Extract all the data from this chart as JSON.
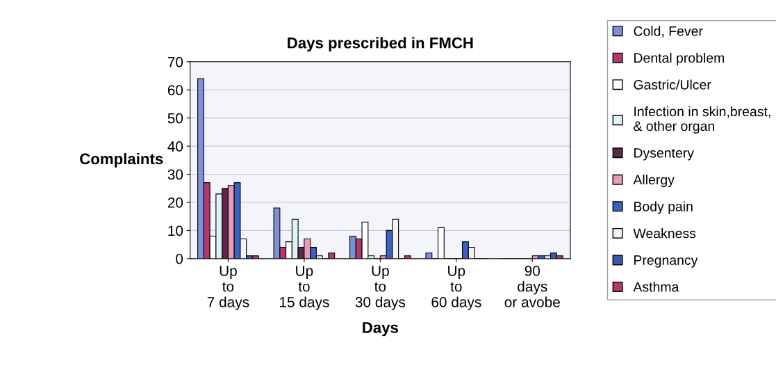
{
  "chart_data": {
    "type": "bar",
    "title": "Days prescribed in FMCH",
    "xlabel": "Days",
    "ylabel": "Complaints",
    "categories": [
      "Up to 7 days",
      "Up to 15 days",
      "Up to 30 days",
      "Up to 60 days",
      "90 days or avobe"
    ],
    "series": [
      {
        "name": "Cold, Fever",
        "color": "#8090d8",
        "values": [
          64,
          18,
          8,
          2,
          0
        ]
      },
      {
        "name": "Dental problem",
        "color": "#b03a6e",
        "values": [
          27,
          4,
          7,
          0,
          0
        ]
      },
      {
        "name": "Gastric/Ulcer",
        "color": "#ffffff",
        "values": [
          8,
          6,
          13,
          11,
          0
        ]
      },
      {
        "name": "Infection in skin,breast, & other organ",
        "color": "#ddf3f5",
        "values": [
          23,
          14,
          1,
          0,
          0
        ]
      },
      {
        "name": "Dysentery",
        "color": "#5a2a4a",
        "values": [
          25,
          4,
          0,
          0,
          0
        ]
      },
      {
        "name": "Allergy",
        "color": "#e89ab8",
        "values": [
          26,
          7,
          1,
          0,
          1
        ]
      },
      {
        "name": "Body pain",
        "color": "#3a62c0",
        "values": [
          27,
          4,
          10,
          6,
          1
        ]
      },
      {
        "name": "Weakness",
        "color": "#f4f4f4",
        "values": [
          7,
          1,
          14,
          4,
          1
        ]
      },
      {
        "name": "Pregnancy",
        "color": "#3a5ab0",
        "values": [
          1,
          0,
          0,
          0,
          2
        ]
      },
      {
        "name": "Asthma",
        "color": "#b03a6e",
        "values": [
          1,
          2,
          1,
          0,
          1
        ]
      }
    ],
    "ylim": [
      0,
      70
    ],
    "yticks": [
      0,
      10,
      20,
      30,
      40,
      50,
      60,
      70
    ],
    "grid": "y",
    "legend": "right"
  }
}
